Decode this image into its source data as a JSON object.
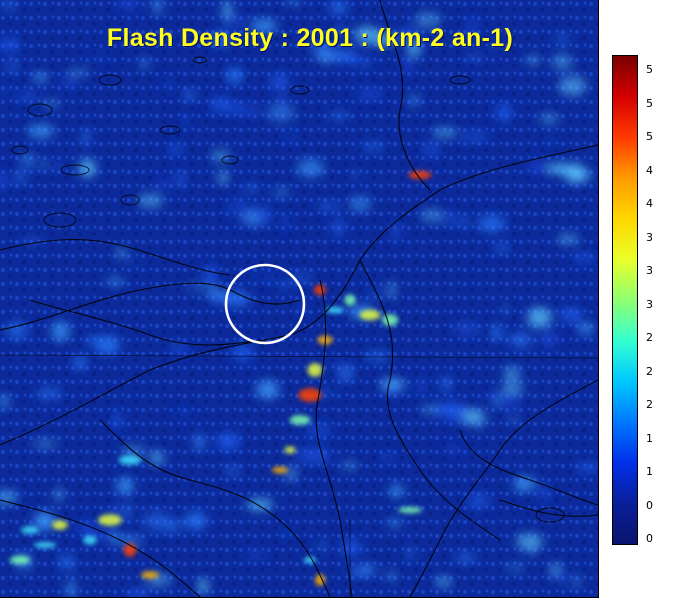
{
  "title": "Flash Density : 2001 : (km-2 an-1)",
  "colors": {
    "background": "#0c2a9c",
    "title": "#ffff1e",
    "marker_circle": "#ffffff",
    "coastline": "#000000"
  },
  "colorbar": {
    "stops": [
      "#7a0000",
      "#d40000",
      "#ff3a00",
      "#ff9a00",
      "#ffd600",
      "#eaff2a",
      "#8fff70",
      "#34ffd0",
      "#00c8ff",
      "#0078ff",
      "#0030e8",
      "#0a1f9a",
      "#0a146e"
    ],
    "tick_labels": [
      "5",
      "5",
      "5",
      "4",
      "4",
      "3",
      "3",
      "3",
      "2",
      "2",
      "2",
      "1",
      "1",
      "0",
      "0"
    ]
  }
}
